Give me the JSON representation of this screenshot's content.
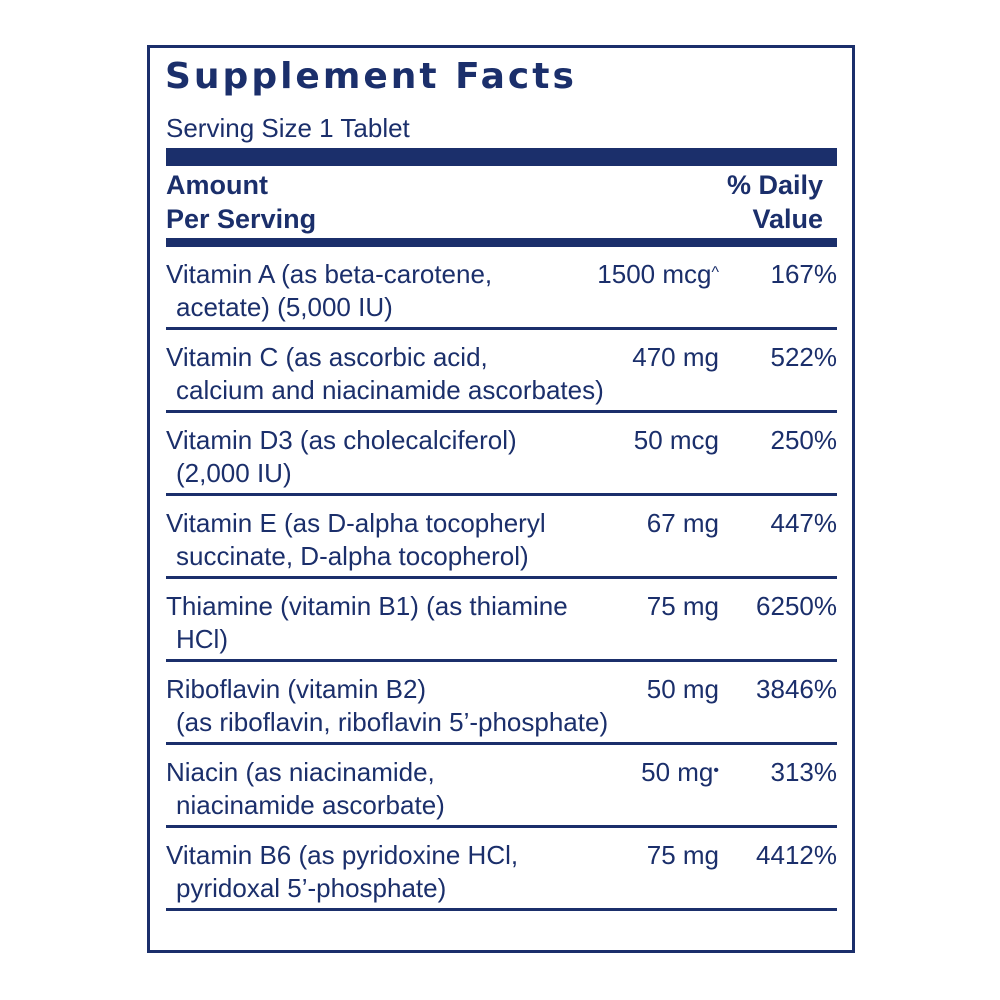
{
  "title": "Supplement Facts",
  "serving_size": "Serving Size 1 Tablet",
  "header": {
    "amount_line1": "Amount",
    "amount_line2": "Per Serving",
    "dv_line1": "% Daily",
    "dv_line2": "Value"
  },
  "rows": [
    {
      "line1": "Vitamin A (as beta-carotene,",
      "line2": "acetate) (5,000 IU)",
      "amount": "1500 mcg",
      "mark": "^",
      "dv": "167%"
    },
    {
      "line1": "Vitamin C (as ascorbic acid,",
      "line2": "calcium and niacinamide ascorbates)",
      "amount": "470 mg",
      "mark": "",
      "dv": "522%"
    },
    {
      "line1": "Vitamin D3 (as cholecalciferol)",
      "line2": "(2,000 IU)",
      "amount": "50 mcg",
      "mark": "",
      "dv": "250%"
    },
    {
      "line1": "Vitamin E (as D-alpha tocopheryl",
      "line2": "succinate, D-alpha tocopherol)",
      "amount": "67 mg",
      "mark": "",
      "dv": "447%"
    },
    {
      "line1": "Thiamine (vitamin B1) (as thiamine",
      "line2": "HCl)",
      "amount": "75 mg",
      "mark": "",
      "dv": "6250%"
    },
    {
      "line1": "Riboflavin (vitamin B2)",
      "line2": "(as riboflavin, riboflavin 5’-phosphate)",
      "amount": "50 mg",
      "mark": "",
      "dv": "3846%"
    },
    {
      "line1": "Niacin (as niacinamide,",
      "line2": "niacinamide ascorbate)",
      "amount": "50 mg",
      "mark": "•",
      "dv": "313%"
    },
    {
      "line1": "Vitamin B6 (as pyridoxine HCl,",
      "line2": "pyridoxal 5’-phosphate)",
      "amount": "75 mg",
      "mark": "",
      "dv": "4412%"
    }
  ],
  "colors": {
    "ink": "#1b2f6b",
    "background": "#ffffff"
  }
}
